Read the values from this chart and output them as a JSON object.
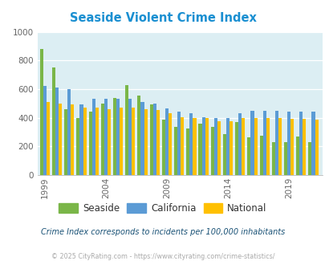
{
  "title": "Seaside Violent Crime Index",
  "years": [
    1999,
    2000,
    2001,
    2002,
    2003,
    2004,
    2005,
    2006,
    2007,
    2008,
    2009,
    2010,
    2011,
    2012,
    2013,
    2014,
    2015,
    2016,
    2017,
    2018,
    2019,
    2020,
    2021
  ],
  "seaside": [
    880,
    750,
    460,
    400,
    440,
    500,
    540,
    630,
    555,
    495,
    385,
    335,
    325,
    360,
    335,
    285,
    370,
    260,
    275,
    230,
    230,
    270,
    230
  ],
  "california": [
    620,
    610,
    600,
    490,
    530,
    530,
    530,
    530,
    510,
    500,
    465,
    440,
    430,
    405,
    400,
    400,
    430,
    450,
    450,
    450,
    445,
    445,
    445
  ],
  "national": [
    510,
    500,
    490,
    470,
    470,
    460,
    470,
    470,
    460,
    455,
    430,
    405,
    395,
    395,
    375,
    375,
    395,
    400,
    400,
    395,
    390,
    390,
    385
  ],
  "seaside_color": "#7ab648",
  "california_color": "#5b9bd5",
  "national_color": "#ffc000",
  "bg_color": "#dceef3",
  "title_color": "#1a8fd1",
  "grid_color": "#ffffff",
  "ylim": [
    0,
    1000
  ],
  "yticks": [
    0,
    200,
    400,
    600,
    800,
    1000
  ],
  "xtick_years": [
    1999,
    2004,
    2009,
    2014,
    2019
  ],
  "footnote": "Crime Index corresponds to incidents per 100,000 inhabitants",
  "copyright": "© 2025 CityRating.com - https://www.cityrating.com/crime-statistics/",
  "legend_labels": [
    "Seaside",
    "California",
    "National"
  ],
  "bar_width": 0.27
}
